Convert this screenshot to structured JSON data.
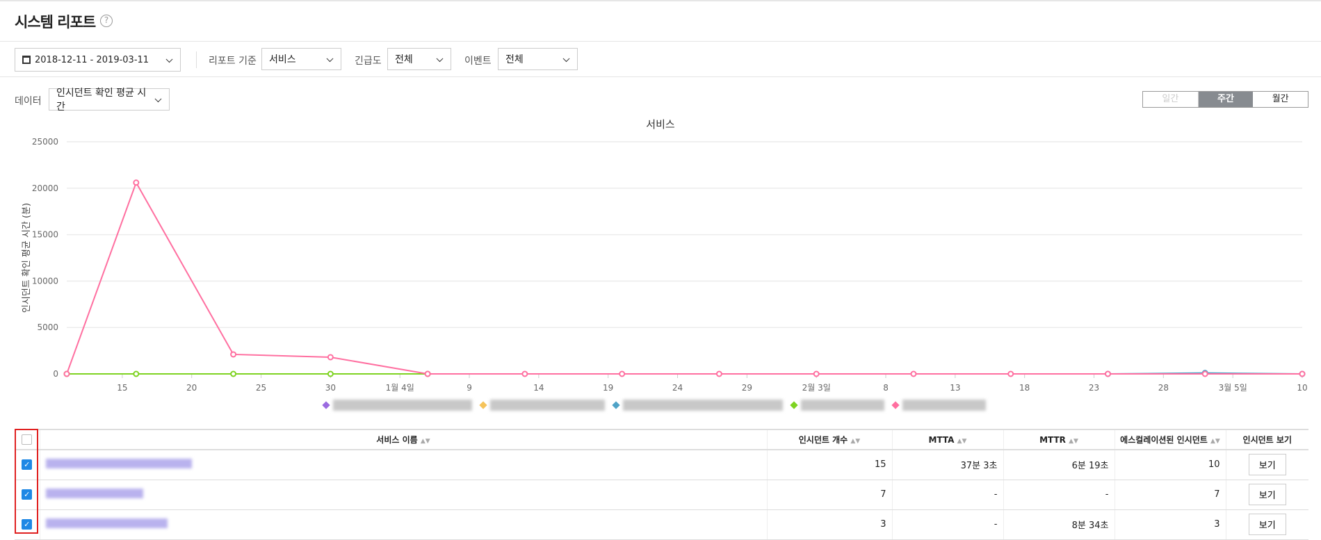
{
  "header": {
    "title": "시스템 리포트",
    "help_icon": "?"
  },
  "filters": {
    "date_range": "2018-12-11 - 2019-03-11",
    "report_basis_label": "리포트 기준",
    "report_basis_value": "서비스",
    "urgency_label": "긴급도",
    "urgency_value": "전체",
    "event_label": "이벤트",
    "event_value": "전체"
  },
  "data_select": {
    "label": "데이터",
    "value": "인시던트 확인 평균 시간"
  },
  "period_toggle": {
    "options": [
      "일간",
      "주간",
      "월간"
    ],
    "selected": "주간"
  },
  "chart_data": {
    "type": "line",
    "title": "서비스",
    "ylabel": "인시던트 확인 평균 시간 (분)",
    "xlabel": "",
    "ylim": [
      0,
      25000
    ],
    "yticks": [
      0,
      5000,
      10000,
      15000,
      20000,
      25000
    ],
    "xlim": [
      "2018-12-11",
      "2019-03-10"
    ],
    "xtick_labels": [
      "15",
      "20",
      "25",
      "30",
      "1월 4일",
      "9",
      "14",
      "19",
      "24",
      "29",
      "2월 3일",
      "8",
      "13",
      "18",
      "23",
      "28",
      "3월 5일",
      "10"
    ],
    "grid": true,
    "legend": "bottom",
    "series": [
      {
        "color": "#9b6be0",
        "x": [],
        "y": []
      },
      {
        "color": "#f5c35a",
        "x": [],
        "y": []
      },
      {
        "color": "#4fa3c7",
        "x": [
          "2019-02-24",
          "2019-03-03",
          "2019-03-10"
        ],
        "y": [
          0,
          100,
          0
        ]
      },
      {
        "color": "#7ed321",
        "x": [
          "2018-12-11",
          "2018-12-16",
          "2018-12-23",
          "2018-12-30",
          "2019-01-06"
        ],
        "y": [
          0,
          0,
          0,
          0,
          0
        ]
      },
      {
        "color": "#ff6fa0",
        "x": [
          "2018-12-11",
          "2018-12-16",
          "2018-12-23",
          "2018-12-30",
          "2019-01-06",
          "2019-01-13",
          "2019-01-20",
          "2019-01-27",
          "2019-02-03",
          "2019-02-10",
          "2019-02-17",
          "2019-02-24",
          "2019-03-03",
          "2019-03-10"
        ],
        "y": [
          0,
          20600,
          2100,
          1800,
          0,
          0,
          0,
          0,
          0,
          0,
          0,
          0,
          0,
          0
        ]
      }
    ]
  },
  "table": {
    "headers": [
      "서비스 이름",
      "인시던트 개수",
      "MTTA",
      "MTTR",
      "에스컬레이션된 인시던트",
      "인시던트 보기"
    ],
    "rows": [
      {
        "checked": true,
        "count": "15",
        "mtta": "37분 3초",
        "mttr": "6분 19초",
        "escalated": "10",
        "view": "보기"
      },
      {
        "checked": true,
        "count": "7",
        "mtta": "-",
        "mttr": "-",
        "escalated": "7",
        "view": "보기"
      },
      {
        "checked": true,
        "count": "3",
        "mtta": "-",
        "mttr": "8분 34초",
        "escalated": "3",
        "view": "보기"
      }
    ]
  }
}
